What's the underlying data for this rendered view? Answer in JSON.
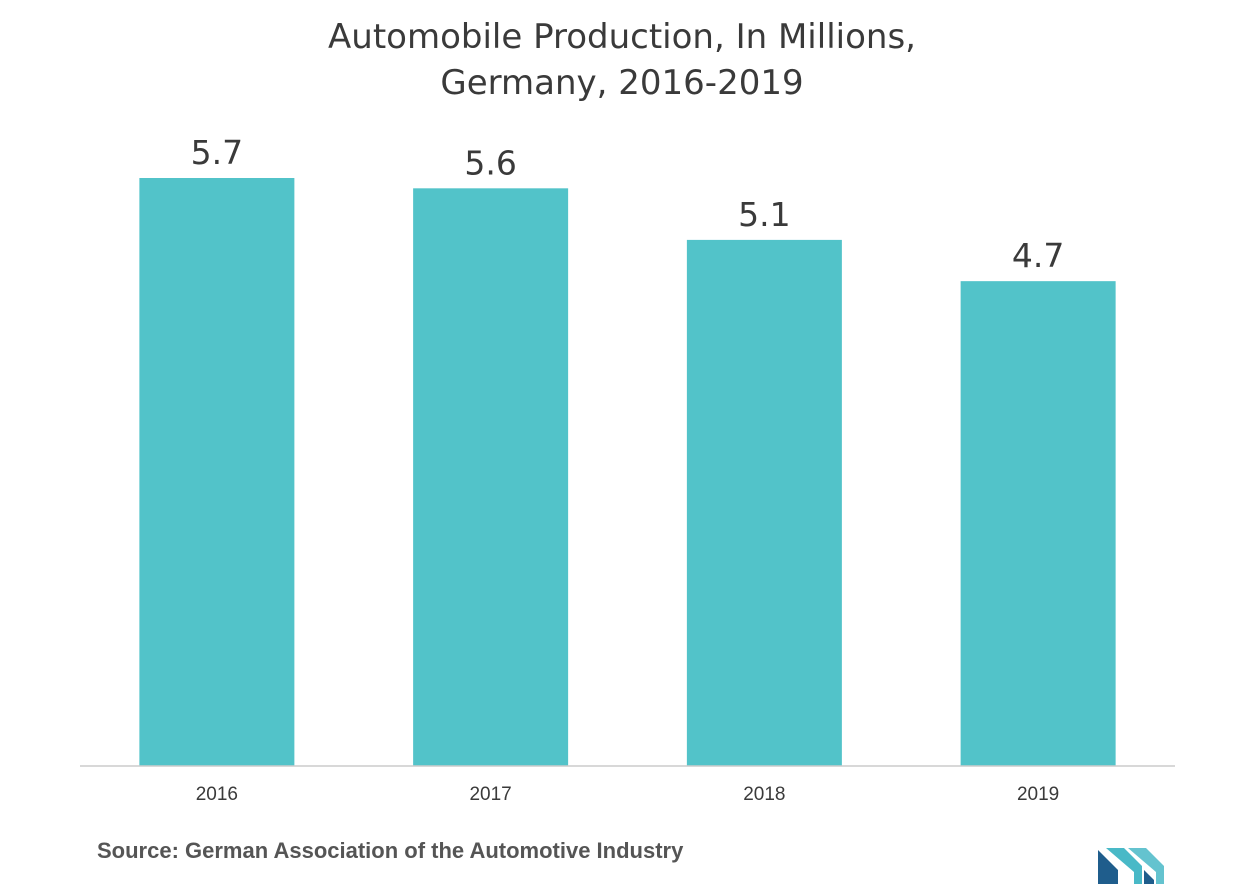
{
  "chart_data": {
    "type": "bar",
    "title": [
      "Automobile Production, In Millions,",
      "Germany, 2016-2019"
    ],
    "categories": [
      "2016",
      "2017",
      "2018",
      "2019"
    ],
    "values": [
      5.7,
      5.6,
      5.1,
      4.7
    ],
    "value_labels": [
      "5.7",
      "5.6",
      "5.1",
      "4.7"
    ],
    "xlabel": "",
    "ylabel": "",
    "ylim": [
      0,
      5.7
    ],
    "grid": false,
    "legend": "none",
    "bar_color": "#52c3c9",
    "axis_color": "#cccccc",
    "label_color": "#3a3a3a"
  },
  "source": "Source: German Association of the Automotive Industry",
  "logo": {
    "icon": "mordor-intelligence-logo-icon",
    "colors": [
      "#1f5d8c",
      "#49b9c7"
    ]
  }
}
